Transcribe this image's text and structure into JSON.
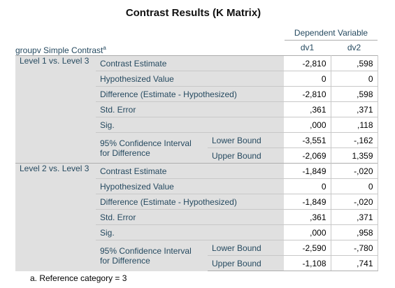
{
  "title": "Contrast Results (K Matrix)",
  "header": {
    "dependent_variable": "Dependent Variable",
    "row_label": "groupv Simple Contrast",
    "row_label_sup": "a",
    "columns": [
      "dv1",
      "dv2"
    ]
  },
  "groups": [
    {
      "name": "Level 1 vs. Level 3",
      "rows": {
        "contrast_estimate": {
          "label": "Contrast Estimate",
          "dv1": "-2,810",
          "dv2": ",598"
        },
        "hypothesized_value": {
          "label": "Hypothesized Value",
          "dv1": "0",
          "dv2": "0"
        },
        "difference": {
          "label": "Difference (Estimate - Hypothesized)",
          "dv1": "-2,810",
          "dv2": ",598"
        },
        "std_error": {
          "label": "Std. Error",
          "dv1": ",361",
          "dv2": ",371"
        },
        "sig": {
          "label": "Sig.",
          "dv1": ",000",
          "dv2": ",118"
        },
        "ci": {
          "label": "95% Confidence Interval for Difference",
          "lower": {
            "label": "Lower Bound",
            "dv1": "-3,551",
            "dv2": "-,162"
          },
          "upper": {
            "label": "Upper Bound",
            "dv1": "-2,069",
            "dv2": "1,359"
          }
        }
      }
    },
    {
      "name": "Level 2 vs. Level 3",
      "rows": {
        "contrast_estimate": {
          "label": "Contrast Estimate",
          "dv1": "-1,849",
          "dv2": "-,020"
        },
        "hypothesized_value": {
          "label": "Hypothesized Value",
          "dv1": "0",
          "dv2": "0"
        },
        "difference": {
          "label": "Difference (Estimate - Hypothesized)",
          "dv1": "-1,849",
          "dv2": "-,020"
        },
        "std_error": {
          "label": "Std. Error",
          "dv1": ",361",
          "dv2": ",371"
        },
        "sig": {
          "label": "Sig.",
          "dv1": ",000",
          "dv2": ",958"
        },
        "ci": {
          "label": "95% Confidence Interval for Difference",
          "lower": {
            "label": "Lower Bound",
            "dv1": "-2,590",
            "dv2": "-,780"
          },
          "upper": {
            "label": "Upper Bound",
            "dv1": "-1,108",
            "dv2": ",741"
          }
        }
      }
    }
  ],
  "footnote": "a. Reference category = 3"
}
